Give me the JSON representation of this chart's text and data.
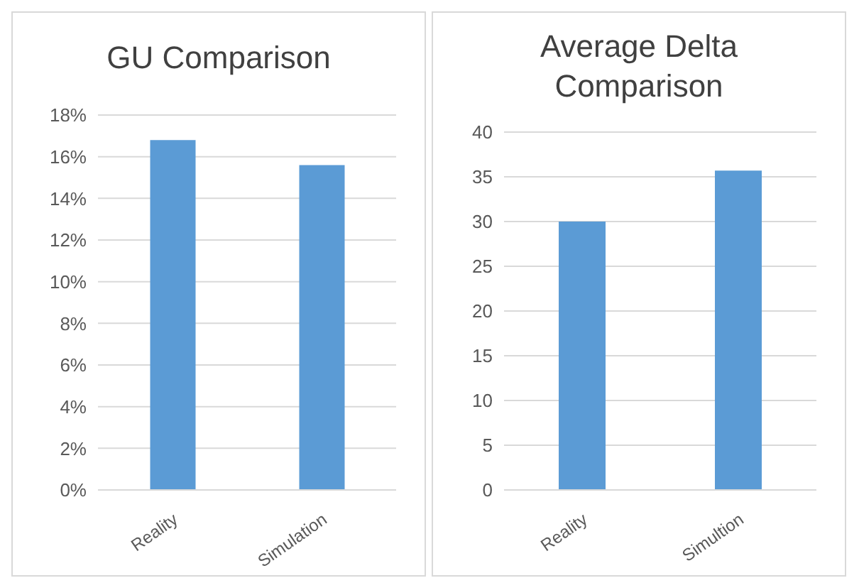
{
  "chart_data": [
    {
      "type": "bar",
      "title": "GU Comparison",
      "categories": [
        "Reality",
        "Simulation"
      ],
      "values": [
        16.8,
        15.6
      ],
      "color": "#5b9bd5",
      "ylim": [
        0,
        18
      ],
      "yticks": [
        {
          "value": 0,
          "label": "0%"
        },
        {
          "value": 2,
          "label": "2%"
        },
        {
          "value": 4,
          "label": "4%"
        },
        {
          "value": 6,
          "label": "6%"
        },
        {
          "value": 8,
          "label": "8%"
        },
        {
          "value": 10,
          "label": "10%"
        },
        {
          "value": 12,
          "label": "12%"
        },
        {
          "value": 14,
          "label": "14%"
        },
        {
          "value": 16,
          "label": "16%"
        },
        {
          "value": 18,
          "label": "18%"
        }
      ],
      "grid": "y"
    },
    {
      "type": "bar",
      "title": "Average Delta Comparison",
      "categories": [
        "Reality",
        "Simultion"
      ],
      "values": [
        30,
        35.7
      ],
      "color": "#5b9bd5",
      "ylim": [
        0,
        40
      ],
      "yticks": [
        0,
        5,
        10,
        15,
        20,
        25,
        30,
        35,
        40
      ],
      "grid": "y"
    }
  ]
}
